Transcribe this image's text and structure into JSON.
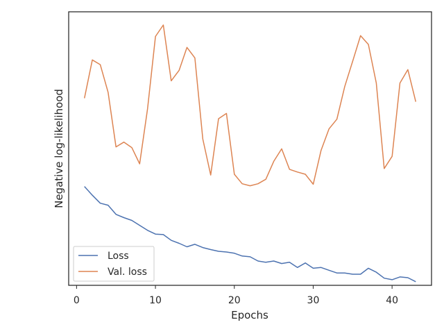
{
  "chart_data": {
    "type": "line",
    "title": "",
    "xlabel": "Epochs",
    "ylabel": "Negative log-likelihood",
    "xlim": [
      -1,
      45
    ],
    "ylim": [
      0,
      100
    ],
    "y_tick_labels_shown": false,
    "xticks": [
      0,
      10,
      20,
      30,
      40
    ],
    "xtick_labels": [
      "0",
      "10",
      "20",
      "30",
      "40"
    ],
    "grid": false,
    "legend_placement": "lower-left",
    "series": [
      {
        "name": "Loss",
        "color": "#4c72b0",
        "x": [
          1,
          2,
          3,
          4,
          5,
          6,
          7,
          8,
          9,
          10,
          11,
          12,
          13,
          14,
          15,
          16,
          17,
          18,
          19,
          20,
          21,
          22,
          23,
          24,
          25,
          26,
          27,
          28,
          29,
          30,
          31,
          32,
          33,
          34,
          35,
          36,
          37,
          38,
          39,
          40,
          41,
          42,
          43
        ],
        "values": [
          35.2,
          31.7,
          28.5,
          27.7,
          24.0,
          22.7,
          21.6,
          19.6,
          17.6,
          16.1,
          15.9,
          13.6,
          12.4,
          11.0,
          12.0,
          10.7,
          9.9,
          9.2,
          8.9,
          8.4,
          7.3,
          7.0,
          5.3,
          4.8,
          5.3,
          4.3,
          4.8,
          2.7,
          4.5,
          2.4,
          2.7,
          1.6,
          0.5,
          0.5,
          0.0,
          0.0,
          2.4,
          0.8,
          -1.6,
          -2.2,
          -1.1,
          -1.4,
          -3.0
        ]
      },
      {
        "name": "Val. loss",
        "color": "#dd8452",
        "x": [
          1,
          2,
          3,
          4,
          5,
          6,
          7,
          8,
          9,
          10,
          11,
          12,
          13,
          14,
          15,
          16,
          17,
          18,
          19,
          20,
          21,
          22,
          23,
          24,
          25,
          26,
          27,
          28,
          29,
          30,
          31,
          32,
          33,
          34,
          35,
          36,
          37,
          38,
          39,
          40,
          41,
          42,
          43
        ],
        "values": [
          70.6,
          86.0,
          84.1,
          73.0,
          51.1,
          53.0,
          50.8,
          44.3,
          66.4,
          95.4,
          100.0,
          77.6,
          81.8,
          91.0,
          86.8,
          54.3,
          39.8,
          62.4,
          64.5,
          40.1,
          36.3,
          35.5,
          36.3,
          38.1,
          45.3,
          50.3,
          42.1,
          41.0,
          40.1,
          36.1,
          49.7,
          58.3,
          62.2,
          75.3,
          85.4,
          95.7,
          92.2,
          76.7,
          42.4,
          47.3,
          76.7,
          82.1,
          69.2
        ]
      }
    ]
  }
}
